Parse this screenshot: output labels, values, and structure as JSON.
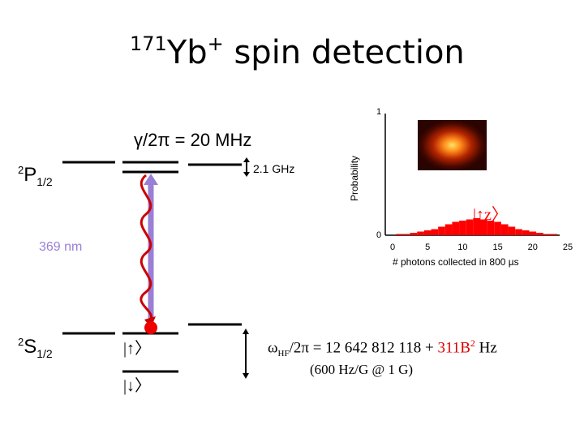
{
  "title": {
    "superscript": "171",
    "main": "Yb",
    "charge": "+",
    "rest": " spin detection"
  },
  "linewidth": "γ/2π = 20 MHz",
  "p_state": {
    "sup": "2",
    "letter": "P",
    "sub": "1/2"
  },
  "s_state": {
    "sup": "2",
    "letter": "S",
    "sub": "1/2"
  },
  "hyperfine_p": "2.1 GHz",
  "laser": {
    "label": "369 nm",
    "color": "#9a7fd6"
  },
  "spin_up_label": "|↑〉",
  "spin_down_label": "|↓〉",
  "hf_eq": {
    "omega": "ω",
    "sub": "HF",
    "eq": "/2π = 12 642 812 118 + ",
    "red": "311B",
    "red_sup": "2",
    "unit": " Hz",
    "line2": "(600 Hz/G @ 1 G)",
    "red_color": "#dd0000"
  },
  "chart_data": {
    "type": "bar",
    "ylabel": "Probability",
    "xlabel": "# photons collected in 800 µs",
    "ylim": [
      0,
      1
    ],
    "yticks": [
      "1",
      "0"
    ],
    "xticks": [
      "0",
      "5",
      "10",
      "15",
      "20",
      "25"
    ],
    "xlim": [
      0,
      25
    ],
    "series_label": "|↑z〉",
    "series_color": "#ff0000",
    "x": [
      1,
      2,
      3,
      4,
      5,
      6,
      7,
      8,
      9,
      10,
      11,
      12,
      13,
      14,
      15,
      16,
      17,
      18,
      19,
      20,
      21,
      22,
      23
    ],
    "values": [
      0.01,
      0.01,
      0.02,
      0.03,
      0.04,
      0.05,
      0.07,
      0.09,
      0.11,
      0.12,
      0.13,
      0.14,
      0.13,
      0.12,
      0.11,
      0.09,
      0.07,
      0.05,
      0.04,
      0.03,
      0.02,
      0.01,
      0.01
    ]
  }
}
